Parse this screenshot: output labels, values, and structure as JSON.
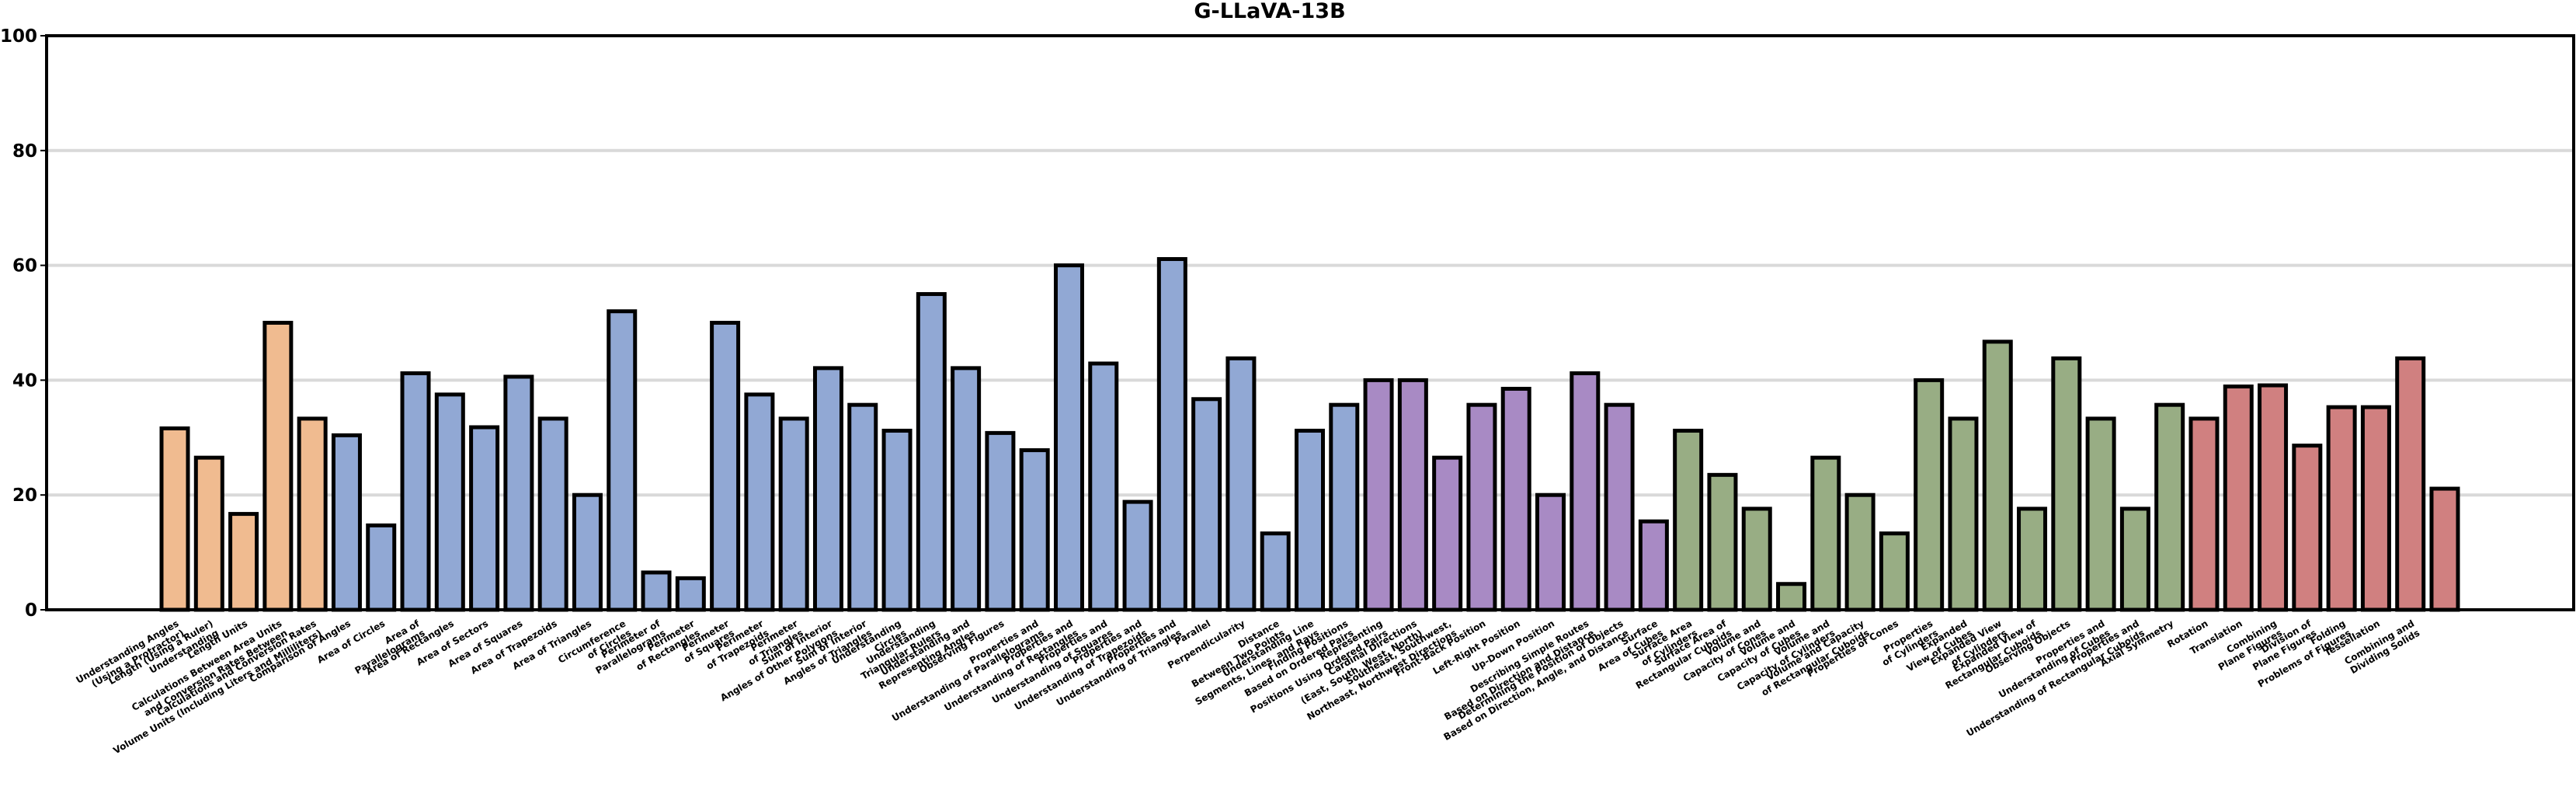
{
  "chart_data": {
    "type": "bar",
    "title": "G-LLaVA-13B",
    "xlabel": "",
    "ylabel": "",
    "ylim": [
      0,
      100
    ],
    "yticks": [
      0,
      20,
      40,
      60,
      80,
      100
    ],
    "grid": "horizontal",
    "legend": "none",
    "group_colors": {
      "measurement": "#f0bb90",
      "plane": "#91a8d4",
      "direction": "#a88ac4",
      "solid": "#98ad84",
      "transformation": "#d08080"
    },
    "bars": [
      {
        "label": "Understanding Angles\n(Using a Protractor)",
        "value": 31.6,
        "group": "measurement"
      },
      {
        "label": "Length (Using a Ruler)\nUnderstanding",
        "value": 26.5,
        "group": "measurement"
      },
      {
        "label": "Length Units",
        "value": 16.7,
        "group": "measurement"
      },
      {
        "label": "Calculations Between Area Units\nand Conversion Rates Between",
        "value": 50.0,
        "group": "measurement"
      },
      {
        "label": "Calculations and Conversion Rates\nVolume Units (Including Liters and Milliliters)",
        "value": 33.3,
        "group": "measurement"
      },
      {
        "label": "Comparison of Angles",
        "value": 30.4,
        "group": "plane"
      },
      {
        "label": "Area of Circles",
        "value": 14.7,
        "group": "plane"
      },
      {
        "label": "Area of\nParallelograms",
        "value": 41.2,
        "group": "plane"
      },
      {
        "label": "Area of Rectangles",
        "value": 37.5,
        "group": "plane"
      },
      {
        "label": "Area of Sectors",
        "value": 31.8,
        "group": "plane"
      },
      {
        "label": "Area of Squares",
        "value": 40.6,
        "group": "plane"
      },
      {
        "label": "Area of Trapezoids",
        "value": 33.3,
        "group": "plane"
      },
      {
        "label": "Area of Triangles",
        "value": 20.0,
        "group": "plane"
      },
      {
        "label": "Circumference\nof Circles",
        "value": 52.0,
        "group": "plane"
      },
      {
        "label": "Perimeter of\nParallelograms",
        "value": 6.5,
        "group": "plane"
      },
      {
        "label": "Perimeter\nof Rectangles",
        "value": 5.5,
        "group": "plane"
      },
      {
        "label": "Perimeter\nof Squares",
        "value": 50.0,
        "group": "plane"
      },
      {
        "label": "Perimeter\nof Trapezoids",
        "value": 37.5,
        "group": "plane"
      },
      {
        "label": "Perimeter\nof Triangles",
        "value": 33.3,
        "group": "plane"
      },
      {
        "label": "Sum of Interior\nAngles of Other Polygons",
        "value": 42.1,
        "group": "plane"
      },
      {
        "label": "Sum of Interior\nAngles of Triangles",
        "value": 35.7,
        "group": "plane"
      },
      {
        "label": "Understanding\nCircles",
        "value": 31.2,
        "group": "plane"
      },
      {
        "label": "Understanding\nTriangular Rulers",
        "value": 55.0,
        "group": "plane"
      },
      {
        "label": "Understanding and\nRepresenting Angles",
        "value": 42.1,
        "group": "plane"
      },
      {
        "label": "Observing Figures",
        "value": 30.8,
        "group": "plane"
      },
      {
        "label": "Properties and\nUnderstanding of Parallelograms",
        "value": 27.8,
        "group": "plane"
      },
      {
        "label": "Properties and\nUnderstanding of Rectangles",
        "value": 60.0,
        "group": "plane"
      },
      {
        "label": "Properties and\nUnderstanding of Squares",
        "value": 42.9,
        "group": "plane"
      },
      {
        "label": "Properties and\nUnderstanding of Trapezoids",
        "value": 18.8,
        "group": "plane"
      },
      {
        "label": "Properties and\nUnderstanding of Triangles",
        "value": 61.1,
        "group": "plane"
      },
      {
        "label": "Parallel",
        "value": 36.7,
        "group": "plane"
      },
      {
        "label": "Perpendicularity",
        "value": 43.8,
        "group": "plane"
      },
      {
        "label": "Distance\nBetween Two Points",
        "value": 13.3,
        "group": "plane"
      },
      {
        "label": "Understanding Line\nSegments, Lines, and Rays",
        "value": 31.2,
        "group": "plane"
      },
      {
        "label": "Finding Positions\nBased on Ordered Pairs",
        "value": 35.7,
        "group": "plane"
      },
      {
        "label": "Representing\nPositions Using Ordered Pairs",
        "value": 40.0,
        "group": "direction"
      },
      {
        "label": "Cardinal Directions\n(East, South, West, North)",
        "value": 40.0,
        "group": "direction"
      },
      {
        "label": "Southeast, Southwest,\nNortheast, Northwest Directions",
        "value": 26.5,
        "group": "direction"
      },
      {
        "label": "Front-Back Position",
        "value": 35.7,
        "group": "direction"
      },
      {
        "label": "Left-Right Position",
        "value": 38.5,
        "group": "direction"
      },
      {
        "label": "Up-Down Position",
        "value": 20.0,
        "group": "direction"
      },
      {
        "label": "Describing Simple Routes\nBased on Direction and Distance",
        "value": 41.2,
        "group": "direction"
      },
      {
        "label": "Determining the Position of Objects\nBased on Direction, Angle, and Distance",
        "value": 35.7,
        "group": "direction"
      },
      {
        "label": "Surface\nArea of Cubes",
        "value": 15.4,
        "group": "direction"
      },
      {
        "label": "Surface Area\nof Cylinders",
        "value": 31.2,
        "group": "solid"
      },
      {
        "label": "Surface Area of\nRectangular Cuboids",
        "value": 23.5,
        "group": "solid"
      },
      {
        "label": "Volume and\nCapacity of Cones",
        "value": 17.6,
        "group": "solid"
      },
      {
        "label": "Volume and\nCapacity of Cubes",
        "value": 4.5,
        "group": "solid"
      },
      {
        "label": "Volume and\nCapacity of Cylinders",
        "value": 26.5,
        "group": "solid"
      },
      {
        "label": "Volume and Capacity\nof Rectangular Cuboids",
        "value": 20.0,
        "group": "solid"
      },
      {
        "label": "Properties of Cones",
        "value": 13.3,
        "group": "solid"
      },
      {
        "label": "Properties\nof Cylinders",
        "value": 40.0,
        "group": "solid"
      },
      {
        "label": "Expanded\nView of Cubes",
        "value": 33.3,
        "group": "solid"
      },
      {
        "label": "Expanded View\nof Cylinders",
        "value": 46.7,
        "group": "solid"
      },
      {
        "label": "Expanded View of\nRectangular Cuboids",
        "value": 17.6,
        "group": "solid"
      },
      {
        "label": "Observing Objects",
        "value": 43.8,
        "group": "solid"
      },
      {
        "label": "Properties and\nUnderstanding of Cubes",
        "value": 33.3,
        "group": "solid"
      },
      {
        "label": "Properties and\nUnderstanding of Rectangular Cuboids",
        "value": 17.6,
        "group": "solid"
      },
      {
        "label": "Axial Symmetry",
        "value": 35.7,
        "group": "solid"
      },
      {
        "label": "Rotation",
        "value": 33.3,
        "group": "transformation"
      },
      {
        "label": "Translation",
        "value": 38.9,
        "group": "transformation"
      },
      {
        "label": "Combining\nPlane Figures",
        "value": 39.1,
        "group": "transformation"
      },
      {
        "label": "Division of\nPlane Figures",
        "value": 28.6,
        "group": "transformation"
      },
      {
        "label": "Folding\nProblems of Figures",
        "value": 35.3,
        "group": "transformation"
      },
      {
        "label": "Tessellation",
        "value": 35.3,
        "group": "transformation"
      },
      {
        "label": "Combining and\nDividing Solids",
        "value": 43.8,
        "group": "transformation"
      },
      {
        "label": "",
        "value": 21.1,
        "group": "transformation"
      }
    ]
  }
}
